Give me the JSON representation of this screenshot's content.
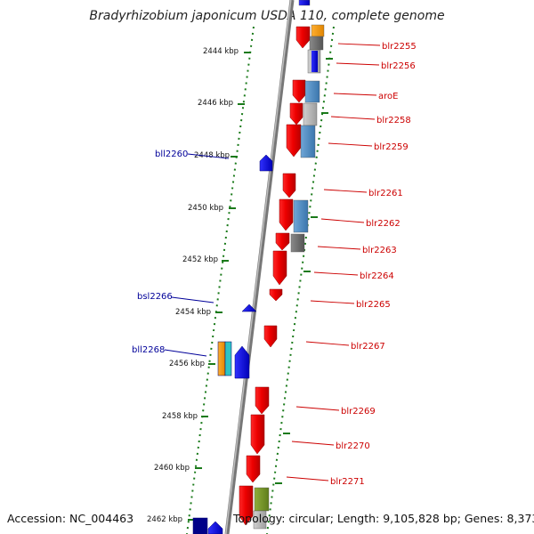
{
  "title": "Bradyrhizobium japonicum USDA 110, complete genome",
  "footer": {
    "accession": "Accession: NC_004463",
    "info": "Topology: circular; Length: 9,105,828 bp; Genes: 8,373"
  },
  "colors": {
    "forward": "#ff0000",
    "reverse": "#0000ff",
    "tick": "#1a7a1a",
    "axis": "#888888",
    "label_forward": "#cc0000",
    "label_reverse": "#000099"
  },
  "kbp_ticks": [
    "2444 kbp",
    "2446 kbp",
    "2448 kbp",
    "2450 kbp",
    "2452 kbp",
    "2454 kbp",
    "2456 kbp",
    "2458 kbp",
    "2460 kbp",
    "2462 kbp"
  ],
  "gene_labels_forward": [
    "blr2255",
    "blr2256",
    "aroE",
    "blr2258",
    "blr2259",
    "blr2261",
    "blr2262",
    "blr2263",
    "blr2264",
    "blr2265",
    "blr2267",
    "blr2269",
    "blr2270",
    "blr2271"
  ],
  "gene_labels_reverse": [
    "bll2260",
    "bsl2266",
    "bll2268"
  ]
}
